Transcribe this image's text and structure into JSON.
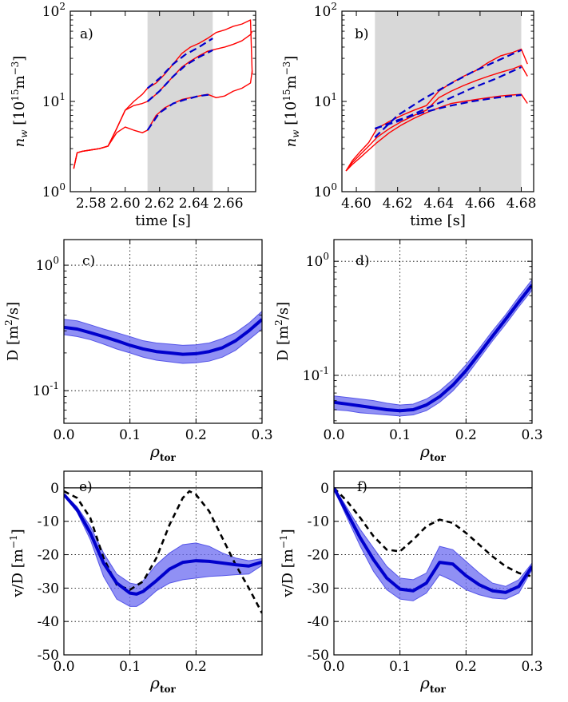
{
  "chart_data": [
    {
      "type": "line",
      "panel_label": "a)",
      "xlabel": "time [s]",
      "ylabel": "n_w [10^15 m^-3]",
      "ylabel_parts": {
        "n": "n",
        "w": "w",
        "mid": " [10",
        "e1": "15",
        "m": "m",
        "e2": "−3",
        "end": "]"
      },
      "yscale": "log",
      "xlim": [
        2.568,
        2.676
      ],
      "ylim": [
        1,
        100
      ],
      "xticks": [
        2.58,
        2.6,
        2.62,
        2.64,
        2.66
      ],
      "xtick_labels": [
        "2.58",
        "2.60",
        "2.62",
        "2.64",
        "2.66"
      ],
      "yticks": [
        1,
        10,
        100
      ],
      "ytick_labels": [
        {
          "base": "10",
          "exp": "0"
        },
        {
          "base": "10",
          "exp": "1"
        },
        {
          "base": "10",
          "exp": "2"
        }
      ],
      "shaded_x": [
        2.613,
        2.651
      ],
      "grid": false,
      "colors": {
        "measured": "#ff0000",
        "fit": "#0000cc",
        "shade": "#d8d8d8"
      },
      "series": [
        {
          "role": "measured",
          "x": [
            2.57,
            2.572,
            2.575,
            2.58,
            2.585,
            2.59,
            2.595,
            2.6,
            2.605,
            2.61,
            2.613,
            2.618,
            2.623,
            2.628,
            2.633,
            2.638,
            2.643,
            2.648,
            2.653,
            2.658,
            2.663,
            2.668,
            2.673,
            2.674
          ],
          "y": [
            1.8,
            2.7,
            2.8,
            2.9,
            3.0,
            3.2,
            5.0,
            8.0,
            10.0,
            12.0,
            14.0,
            16.0,
            20.0,
            26.0,
            34.0,
            40.0,
            44.0,
            50.0,
            58.0,
            62.0,
            68.0,
            72.0,
            80.0,
            20.0
          ]
        },
        {
          "role": "measured",
          "x": [
            2.57,
            2.572,
            2.575,
            2.58,
            2.585,
            2.59,
            2.595,
            2.6,
            2.605,
            2.61,
            2.613,
            2.618,
            2.623,
            2.628,
            2.633,
            2.638,
            2.643,
            2.648,
            2.653,
            2.658,
            2.663,
            2.668,
            2.673,
            2.674
          ],
          "y": [
            1.8,
            2.7,
            2.8,
            2.9,
            3.0,
            3.2,
            5.0,
            8.0,
            9.0,
            9.5,
            10.0,
            12.0,
            15.0,
            19.0,
            24.0,
            28.0,
            32.0,
            36.0,
            38.0,
            40.0,
            43.0,
            47.0,
            55.0,
            60.0
          ]
        },
        {
          "role": "measured",
          "x": [
            2.57,
            2.572,
            2.575,
            2.58,
            2.585,
            2.59,
            2.595,
            2.6,
            2.605,
            2.61,
            2.613,
            2.618,
            2.623,
            2.628,
            2.633,
            2.638,
            2.643,
            2.648,
            2.653,
            2.658,
            2.663,
            2.668,
            2.673,
            2.674
          ],
          "y": [
            1.8,
            2.7,
            2.8,
            2.9,
            3.0,
            3.2,
            4.5,
            5.2,
            4.8,
            4.5,
            4.8,
            7.0,
            8.5,
            9.5,
            10.5,
            11.0,
            11.5,
            12.0,
            11.0,
            11.5,
            13.0,
            14.0,
            16.0,
            22.0
          ]
        },
        {
          "role": "fit",
          "x": [
            2.613,
            2.62,
            2.628,
            2.635,
            2.643,
            2.651
          ],
          "y": [
            14.0,
            18.0,
            26.0,
            33.0,
            40.0,
            50.0
          ]
        },
        {
          "role": "fit",
          "x": [
            2.613,
            2.62,
            2.628,
            2.635,
            2.643,
            2.651
          ],
          "y": [
            10.0,
            13.0,
            19.0,
            25.0,
            31.0,
            37.0
          ]
        },
        {
          "role": "fit",
          "x": [
            2.613,
            2.62,
            2.628,
            2.635,
            2.643,
            2.651
          ],
          "y": [
            4.8,
            7.5,
            9.5,
            10.5,
            11.5,
            12.0
          ]
        }
      ]
    },
    {
      "type": "line",
      "panel_label": "b)",
      "xlabel": "time [s]",
      "ylabel": "n_w [10^15 m^-3]",
      "ylabel_parts": {
        "n": "n",
        "w": "w",
        "mid": " [10",
        "e1": "15",
        "m": "m",
        "e2": "−3",
        "end": "]"
      },
      "yscale": "log",
      "xlim": [
        4.593,
        4.686
      ],
      "ylim": [
        1,
        100
      ],
      "xticks": [
        4.6,
        4.62,
        4.64,
        4.66,
        4.68
      ],
      "xtick_labels": [
        "4.60",
        "4.62",
        "4.64",
        "4.66",
        "4.68"
      ],
      "yticks": [
        1,
        10,
        100
      ],
      "ytick_labels": [
        {
          "base": "10",
          "exp": "0"
        },
        {
          "base": "10",
          "exp": "1"
        },
        {
          "base": "10",
          "exp": "2"
        }
      ],
      "shaded_x": [
        4.609,
        4.68
      ],
      "grid": false,
      "colors": {
        "measured": "#ff0000",
        "fit": "#0000cc",
        "shade": "#d8d8d8"
      },
      "series": [
        {
          "role": "measured",
          "x": [
            4.595,
            4.598,
            4.602,
            4.606,
            4.61,
            4.616,
            4.622,
            4.628,
            4.634,
            4.64,
            4.646,
            4.652,
            4.658,
            4.664,
            4.67,
            4.676,
            4.68,
            4.683
          ],
          "y": [
            1.7,
            2.2,
            2.8,
            3.5,
            5.0,
            6.0,
            7.0,
            8.0,
            9.0,
            13.0,
            16.0,
            19.0,
            22.0,
            27.0,
            32.0,
            35.0,
            38.0,
            26.0
          ]
        },
        {
          "role": "measured",
          "x": [
            4.595,
            4.598,
            4.602,
            4.606,
            4.61,
            4.616,
            4.622,
            4.628,
            4.634,
            4.64,
            4.646,
            4.652,
            4.658,
            4.664,
            4.67,
            4.676,
            4.68,
            4.683
          ],
          "y": [
            1.7,
            2.1,
            2.6,
            3.2,
            4.0,
            5.0,
            6.0,
            7.0,
            8.0,
            11.0,
            13.0,
            15.0,
            17.0,
            19.0,
            21.0,
            23.0,
            25.0,
            19.0
          ]
        },
        {
          "role": "measured",
          "x": [
            4.595,
            4.598,
            4.602,
            4.606,
            4.61,
            4.616,
            4.622,
            4.628,
            4.634,
            4.64,
            4.646,
            4.652,
            4.658,
            4.664,
            4.67,
            4.676,
            4.68,
            4.683
          ],
          "y": [
            1.7,
            2.0,
            2.4,
            2.9,
            3.5,
            4.5,
            5.5,
            6.5,
            7.5,
            8.5,
            9.5,
            10.0,
            10.5,
            11.0,
            11.5,
            11.8,
            12.0,
            9.5
          ]
        },
        {
          "role": "fit",
          "x": [
            4.609,
            4.62,
            4.632,
            4.644,
            4.656,
            4.668,
            4.68
          ],
          "y": [
            4.0,
            7.0,
            10.5,
            15.0,
            21.0,
            28.0,
            37.0
          ]
        },
        {
          "role": "fit",
          "x": [
            4.609,
            4.62,
            4.632,
            4.644,
            4.656,
            4.668,
            4.68
          ],
          "y": [
            5.0,
            6.0,
            8.0,
            10.5,
            14.0,
            18.0,
            24.0
          ]
        },
        {
          "role": "fit",
          "x": [
            4.609,
            4.62,
            4.632,
            4.644,
            4.656,
            4.668,
            4.68
          ],
          "y": [
            5.0,
            6.2,
            7.5,
            8.8,
            10.0,
            11.0,
            11.8
          ]
        }
      ]
    },
    {
      "type": "area",
      "panel_label": "c)",
      "xlabel": "ρ_tor",
      "xlabel_parts": {
        "sym": "ρ",
        "sub": "tor"
      },
      "ylabel": "D [m^2/s]",
      "ylabel_parts": {
        "a": "D [m",
        "e": "2",
        "b": "/s]"
      },
      "yscale": "log",
      "xlim": [
        0.0,
        0.3
      ],
      "ylim": [
        0.055,
        1.6
      ],
      "xticks": [
        0.0,
        0.1,
        0.2,
        0.3
      ],
      "xtick_labels": [
        "0.0",
        "0.1",
        "0.2",
        "0.3"
      ],
      "yticks": [
        0.1,
        1.0
      ],
      "ytick_labels": [
        {
          "base": "10",
          "exp": "-1"
        },
        {
          "base": "10",
          "exp": "0"
        }
      ],
      "grid": true,
      "colors": {
        "line": "#0000cc",
        "band": "#6b6bf0",
        "band_edge": "#5555e8"
      },
      "x": [
        0.0,
        0.02,
        0.04,
        0.06,
        0.08,
        0.1,
        0.12,
        0.14,
        0.16,
        0.18,
        0.2,
        0.22,
        0.24,
        0.26,
        0.28,
        0.3
      ],
      "y": [
        0.32,
        0.31,
        0.29,
        0.27,
        0.25,
        0.23,
        0.215,
        0.205,
        0.2,
        0.195,
        0.197,
        0.205,
        0.22,
        0.25,
        0.3,
        0.37
      ],
      "y_lower": [
        0.28,
        0.27,
        0.255,
        0.235,
        0.215,
        0.2,
        0.185,
        0.175,
        0.17,
        0.165,
        0.167,
        0.172,
        0.185,
        0.21,
        0.255,
        0.31
      ],
      "y_upper": [
        0.37,
        0.36,
        0.335,
        0.31,
        0.29,
        0.27,
        0.25,
        0.24,
        0.235,
        0.23,
        0.232,
        0.24,
        0.26,
        0.29,
        0.345,
        0.43
      ]
    },
    {
      "type": "area",
      "panel_label": "d)",
      "xlabel": "ρ_tor",
      "xlabel_parts": {
        "sym": "ρ",
        "sub": "tor"
      },
      "ylabel": "D [m^2/s]",
      "ylabel_parts": {
        "a": "D [m",
        "e": "2",
        "b": "/s]"
      },
      "yscale": "log",
      "xlim": [
        0.0,
        0.3
      ],
      "ylim": [
        0.038,
        1.55
      ],
      "xticks": [
        0.0,
        0.1,
        0.2,
        0.3
      ],
      "xtick_labels": [
        "0.0",
        "0.1",
        "0.2",
        "0.3"
      ],
      "yticks": [
        0.1,
        1.0
      ],
      "ytick_labels": [
        {
          "base": "10",
          "exp": "-1"
        },
        {
          "base": "10",
          "exp": "0"
        }
      ],
      "grid": true,
      "colors": {
        "line": "#0000cc",
        "band": "#6b6bf0",
        "band_edge": "#5555e8"
      },
      "x": [
        0.0,
        0.02,
        0.04,
        0.06,
        0.08,
        0.1,
        0.12,
        0.14,
        0.16,
        0.18,
        0.2,
        0.22,
        0.24,
        0.26,
        0.28,
        0.3
      ],
      "y": [
        0.058,
        0.056,
        0.054,
        0.052,
        0.05,
        0.049,
        0.05,
        0.055,
        0.065,
        0.082,
        0.11,
        0.155,
        0.22,
        0.31,
        0.44,
        0.62
      ],
      "y_lower": [
        0.05,
        0.049,
        0.047,
        0.046,
        0.045,
        0.044,
        0.045,
        0.049,
        0.058,
        0.073,
        0.098,
        0.14,
        0.2,
        0.28,
        0.4,
        0.56
      ],
      "y_upper": [
        0.066,
        0.064,
        0.062,
        0.06,
        0.057,
        0.055,
        0.056,
        0.062,
        0.073,
        0.092,
        0.124,
        0.172,
        0.245,
        0.34,
        0.49,
        0.69
      ]
    },
    {
      "type": "area",
      "panel_label": "e)",
      "xlabel": "ρ_tor",
      "xlabel_parts": {
        "sym": "ρ",
        "sub": "tor"
      },
      "ylabel": "v/D [m^-1]",
      "ylabel_parts": {
        "a": "v/D [m",
        "e": "−1",
        "b": "]"
      },
      "yscale": "linear",
      "xlim": [
        0.0,
        0.3
      ],
      "ylim": [
        -50,
        5
      ],
      "xticks": [
        0.0,
        0.1,
        0.2
      ],
      "xtick_labels": [
        "0.0",
        "0.1",
        "0.2"
      ],
      "yticks": [
        0,
        -10,
        -20,
        -30,
        -40,
        -50
      ],
      "ytick_labels": [
        "0",
        "-10",
        "-20",
        "-30",
        "-40",
        "-50"
      ],
      "hline": 0,
      "grid": true,
      "colors": {
        "line": "#0000cc",
        "band": "#6b6bf0",
        "band_edge": "#5555e8",
        "dashed": "#000000"
      },
      "x": [
        0.0,
        0.02,
        0.04,
        0.06,
        0.08,
        0.1,
        0.11,
        0.12,
        0.14,
        0.16,
        0.18,
        0.2,
        0.22,
        0.24,
        0.26,
        0.28,
        0.3
      ],
      "y": [
        -2.0,
        -6.5,
        -13.5,
        -22.5,
        -28.5,
        -31.5,
        -31.8,
        -31.0,
        -27.8,
        -24.3,
        -22.3,
        -21.8,
        -22.0,
        -22.5,
        -23.0,
        -23.4,
        -22.2
      ],
      "y_lower": [
        -2.3,
        -7.3,
        -15.5,
        -26.5,
        -33.3,
        -35.5,
        -35.5,
        -34.3,
        -30.8,
        -28.5,
        -27.5,
        -27.0,
        -26.5,
        -26.3,
        -26.0,
        -25.8,
        -23.2
      ],
      "y_upper": [
        -1.7,
        -5.7,
        -11.5,
        -19.5,
        -25.8,
        -28.5,
        -28.9,
        -27.8,
        -23.0,
        -19.5,
        -17.0,
        -16.5,
        -17.5,
        -19.5,
        -21.0,
        -21.8,
        -21.2
      ],
      "dashed_x": [
        0.0,
        0.02,
        0.04,
        0.06,
        0.08,
        0.1,
        0.12,
        0.14,
        0.16,
        0.18,
        0.19,
        0.2,
        0.22,
        0.24,
        0.26,
        0.28,
        0.3
      ],
      "dashed_y": [
        -1.0,
        -3.0,
        -9.0,
        -21.0,
        -29.0,
        -30.5,
        -28.0,
        -21.0,
        -11.0,
        -3.0,
        -1.0,
        -2.0,
        -7.0,
        -15.0,
        -23.0,
        -30.0,
        -37.5
      ]
    },
    {
      "type": "area",
      "panel_label": "f)",
      "xlabel": "ρ_tor",
      "xlabel_parts": {
        "sym": "ρ",
        "sub": "tor"
      },
      "ylabel": "v/D [m^-1]",
      "ylabel_parts": {
        "a": "v/D [m",
        "e": "−1",
        "b": "]"
      },
      "yscale": "linear",
      "xlim": [
        0.0,
        0.3
      ],
      "ylim": [
        -50,
        5
      ],
      "xticks": [
        0.0,
        0.1,
        0.2,
        0.3
      ],
      "xtick_labels": [
        "0.0",
        "0.1",
        "0.2",
        "0.3"
      ],
      "yticks": [
        0,
        -10,
        -20,
        -30,
        -40,
        -50
      ],
      "ytick_labels": [
        "0",
        "-10",
        "-20",
        "-30",
        "-40",
        "-50"
      ],
      "hline": 0,
      "grid": true,
      "colors": {
        "line": "#0000cc",
        "band": "#6b6bf0",
        "band_edge": "#5555e8",
        "dashed": "#000000"
      },
      "x": [
        0.0,
        0.02,
        0.04,
        0.06,
        0.08,
        0.1,
        0.12,
        0.14,
        0.16,
        0.18,
        0.2,
        0.22,
        0.24,
        0.26,
        0.28,
        0.3
      ],
      "y": [
        0.0,
        -7.5,
        -15.0,
        -21.5,
        -27.0,
        -30.3,
        -30.8,
        -28.5,
        -22.3,
        -22.8,
        -26.3,
        -29.0,
        -30.8,
        -31.3,
        -29.5,
        -23.5
      ],
      "y_lower": [
        -0.3,
        -9.0,
        -17.5,
        -25.0,
        -30.5,
        -33.3,
        -33.8,
        -31.5,
        -26.0,
        -27.8,
        -30.5,
        -32.0,
        -33.0,
        -33.3,
        -31.5,
        -24.5
      ],
      "y_upper": [
        0.3,
        -6.0,
        -12.5,
        -18.0,
        -23.5,
        -27.0,
        -27.5,
        -25.5,
        -17.5,
        -18.5,
        -22.0,
        -25.5,
        -28.5,
        -29.5,
        -27.5,
        -22.5
      ],
      "dashed_x": [
        0.0,
        0.02,
        0.04,
        0.06,
        0.08,
        0.1,
        0.12,
        0.14,
        0.16,
        0.18,
        0.2,
        0.22,
        0.24,
        0.26,
        0.28,
        0.3
      ],
      "dashed_y": [
        0.0,
        -4.0,
        -9.0,
        -14.5,
        -18.5,
        -19.0,
        -15.5,
        -11.5,
        -9.5,
        -10.5,
        -13.5,
        -17.0,
        -20.5,
        -23.5,
        -25.5,
        -26.5
      ]
    }
  ]
}
